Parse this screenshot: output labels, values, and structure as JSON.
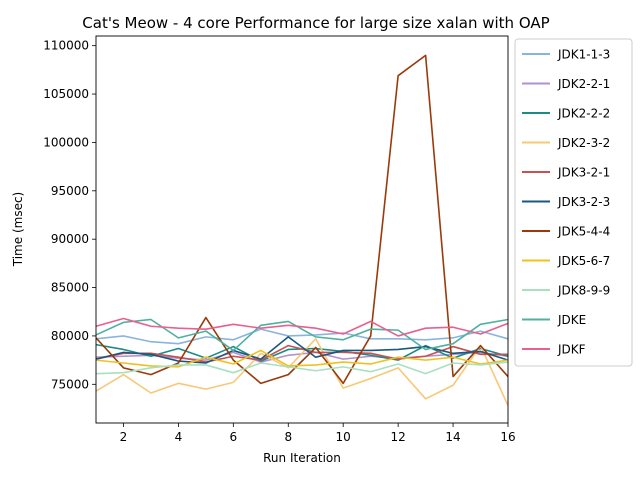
{
  "chart_data": {
    "type": "line",
    "title": "Cat's Meow - 4 core Performance for large size xalan with OAP",
    "xlabel": "Run Iteration",
    "ylabel": "Time (msec)",
    "xlim": [
      1,
      16
    ],
    "ylim": [
      71000,
      111000
    ],
    "xticks": [
      2,
      4,
      6,
      8,
      10,
      12,
      14,
      16
    ],
    "yticks": [
      75000,
      80000,
      85000,
      90000,
      95000,
      100000,
      105000,
      110000
    ],
    "x": [
      1,
      2,
      3,
      4,
      5,
      6,
      7,
      8,
      9,
      10,
      11,
      12,
      13,
      14,
      15,
      16
    ],
    "legend_position": "upper-right-outside",
    "series": [
      {
        "name": "JDK1-1-3",
        "color": "#8ab4e0",
        "values": [
          79700,
          80000,
          79400,
          79200,
          79900,
          79600,
          80700,
          80000,
          80100,
          80300,
          79700,
          79700,
          79600,
          79800,
          80500,
          79700
        ]
      },
      {
        "name": "JDK2-2-1",
        "color": "#b090d0",
        "values": [
          77800,
          77900,
          78000,
          77700,
          77500,
          78300,
          77300,
          78000,
          78300,
          77600,
          77900,
          77700,
          77900,
          78100,
          78300,
          77900
        ]
      },
      {
        "name": "JDK2-2-2",
        "color": "#1a8c86",
        "values": [
          79100,
          78600,
          77900,
          78700,
          77700,
          78900,
          77400,
          78600,
          78700,
          78400,
          78000,
          77500,
          79000,
          77700,
          78700,
          77900
        ]
      },
      {
        "name": "JDK2-3-2",
        "color": "#f7c877",
        "values": [
          74300,
          76000,
          74100,
          75100,
          74500,
          75200,
          78200,
          76700,
          79700,
          74600,
          75600,
          76700,
          73500,
          74900,
          79000,
          72800
        ]
      },
      {
        "name": "JDK3-2-1",
        "color": "#c85050",
        "values": [
          77600,
          78200,
          78200,
          77800,
          77300,
          77900,
          77500,
          79000,
          78300,
          78300,
          78200,
          77600,
          77900,
          78900,
          78100,
          78100
        ]
      },
      {
        "name": "JDK3-2-3",
        "color": "#1a5880",
        "values": [
          77600,
          78300,
          78100,
          77400,
          77200,
          78500,
          77600,
          79900,
          77800,
          78500,
          78500,
          78600,
          78900,
          78200,
          78400,
          77500
        ]
      },
      {
        "name": "JDK5-4-4",
        "color": "#9a3a0a",
        "values": [
          79800,
          76700,
          76000,
          77200,
          81900,
          77500,
          75100,
          76000,
          78800,
          75100,
          80000,
          106900,
          109000,
          75800,
          79000,
          75800
        ]
      },
      {
        "name": "JDK5-6-7",
        "color": "#f0c020",
        "values": [
          77500,
          77200,
          76900,
          76800,
          77800,
          77100,
          78500,
          76900,
          77000,
          77300,
          77100,
          77800,
          77500,
          77800,
          77100,
          77500
        ]
      },
      {
        "name": "JDK8-9-9",
        "color": "#a8e0c0",
        "values": [
          76100,
          76200,
          76700,
          77000,
          77000,
          76200,
          77200,
          76800,
          76400,
          76800,
          76300,
          77100,
          76100,
          77200,
          77000,
          77300
        ]
      },
      {
        "name": "JDKE",
        "color": "#50b0a0",
        "values": [
          80100,
          81400,
          81700,
          79800,
          80500,
          78500,
          81100,
          81500,
          79900,
          79600,
          80700,
          80600,
          78600,
          79200,
          81200,
          81700
        ]
      },
      {
        "name": "JDKF",
        "color": "#e86090",
        "values": [
          81000,
          81800,
          81000,
          80800,
          80700,
          81200,
          80800,
          81100,
          80800,
          80200,
          81500,
          80000,
          80800,
          80900,
          80200,
          81300
        ]
      }
    ]
  }
}
